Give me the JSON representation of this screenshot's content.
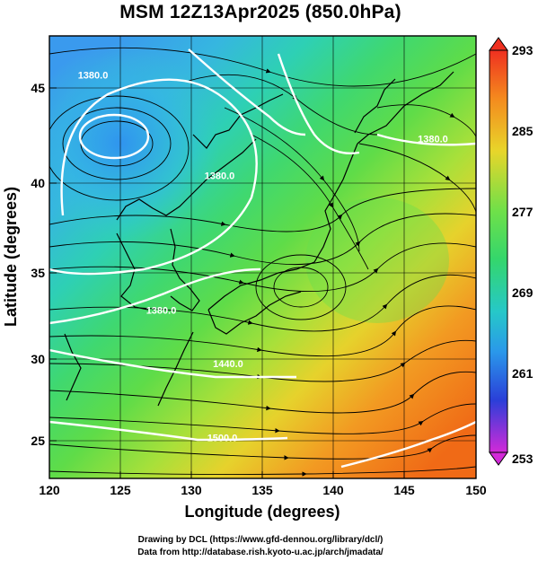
{
  "title": "MSM 12Z13Apr2025 (850.0hPa)",
  "credits": {
    "line1": "Drawing by DCL (https://www.gfd-dennou.org/library/dcl/)",
    "line2": "Data from http://database.rish.kyoto-u.ac.jp/arch/jmadata/"
  },
  "axes": {
    "xlabel": "Longitude (degrees)",
    "ylabel": "Latitude  (degrees)",
    "xlim": [
      120,
      150
    ],
    "ylim": [
      22.5,
      47.5
    ],
    "xticks": [
      120,
      125,
      130,
      135,
      140,
      145,
      150
    ],
    "yticks": [
      25,
      30,
      35,
      40,
      45
    ]
  },
  "colorbar": {
    "min": 253,
    "max": 293,
    "tick_labels": [
      "293",
      "285",
      "277",
      "269",
      "261",
      "253"
    ]
  },
  "contour_labels": [
    {
      "text": "1380.0",
      "lon": 122.0,
      "lat": 45.1
    },
    {
      "text": "1380.0",
      "lon": 145.9,
      "lat": 41.5
    },
    {
      "text": "1380.0",
      "lon": 130.9,
      "lat": 39.4
    },
    {
      "text": "1380.0",
      "lon": 126.8,
      "lat": 31.8
    },
    {
      "text": "1440.0",
      "lon": 131.5,
      "lat": 28.8
    },
    {
      "text": "1500.0",
      "lon": 131.1,
      "lat": 24.6
    }
  ],
  "colors": {
    "cold": "#3aa8ef",
    "cool": "#2ed2c4",
    "mild": "#6ee64e",
    "warm": "#e8d22a",
    "hot": "#f07a1a"
  }
}
